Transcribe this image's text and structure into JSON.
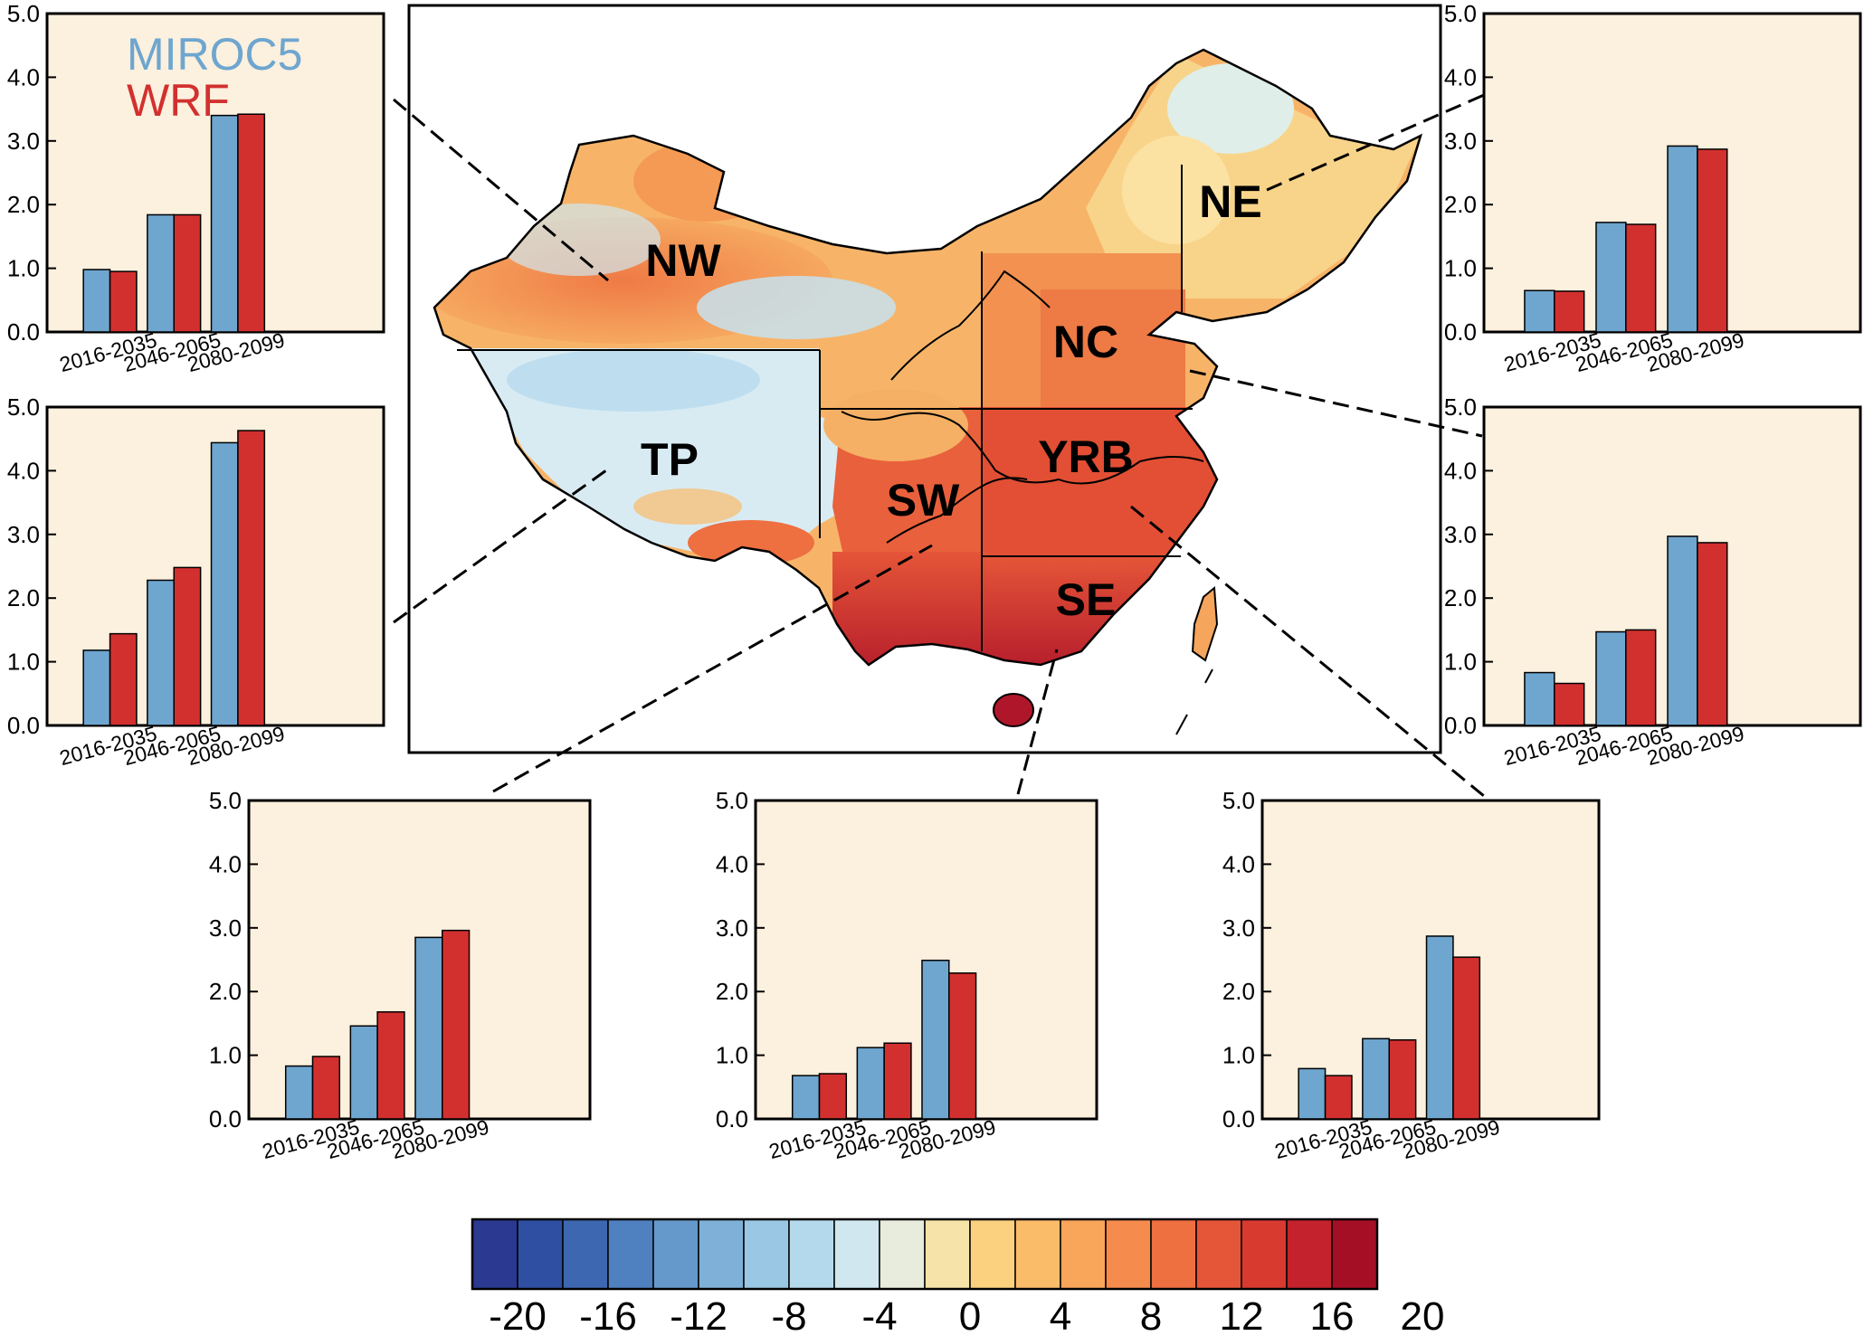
{
  "colors": {
    "miroc": "#6ea6cf",
    "wrf": "#d2302f",
    "panel_bg": "#fcf0de"
  },
  "legend": {
    "miroc": "MIROC5",
    "wrf": "WRF"
  },
  "map": {
    "region_labels": [
      "NW",
      "NE",
      "NC",
      "TP",
      "YRB",
      "SW",
      "SE"
    ]
  },
  "colorbar": {
    "ticks": [
      "-20",
      "-16",
      "-12",
      "-8",
      "-4",
      "0",
      "4",
      "8",
      "12",
      "16",
      "20"
    ],
    "colors": [
      "#2b3990",
      "#2f4fa2",
      "#3d67b0",
      "#4f80bf",
      "#6599cb",
      "#7fb1d8",
      "#9ac7e3",
      "#b5d9ec",
      "#d0e7f0",
      "#e8ecdc",
      "#f5e3a9",
      "#fbd07e",
      "#fbbc6a",
      "#f9a55a",
      "#f58b4d",
      "#ee6f40",
      "#e55538",
      "#d83a30",
      "#c4222c",
      "#a50f26"
    ]
  },
  "chart_data": [
    {
      "type": "bar",
      "region": "NW",
      "categories": [
        "2016-2035",
        "2046-2065",
        "2080-2099"
      ],
      "ylim": [
        0,
        5
      ],
      "yticks": [
        "0.0",
        "1.0",
        "2.0",
        "3.0",
        "4.0",
        "5.0"
      ],
      "series": [
        {
          "name": "MIROC5",
          "values": [
            0.98,
            1.84,
            3.4
          ]
        },
        {
          "name": "WRF",
          "values": [
            0.95,
            1.84,
            3.42
          ]
        }
      ]
    },
    {
      "type": "bar",
      "region": "TP",
      "categories": [
        "2016-2035",
        "2046-2065",
        "2080-2099"
      ],
      "ylim": [
        0,
        5
      ],
      "yticks": [
        "0.0",
        "1.0",
        "2.0",
        "3.0",
        "4.0",
        "5.0"
      ],
      "series": [
        {
          "name": "MIROC5",
          "values": [
            1.18,
            2.28,
            4.44
          ]
        },
        {
          "name": "WRF",
          "values": [
            1.44,
            2.48,
            4.63
          ]
        }
      ]
    },
    {
      "type": "bar",
      "region": "NE",
      "categories": [
        "2016-2035",
        "2046-2065",
        "2080-2099"
      ],
      "ylim": [
        0,
        5
      ],
      "yticks": [
        "0.0",
        "1.0",
        "2.0",
        "3.0",
        "4.0",
        "5.0"
      ],
      "series": [
        {
          "name": "MIROC5",
          "values": [
            0.65,
            1.72,
            2.92
          ]
        },
        {
          "name": "WRF",
          "values": [
            0.64,
            1.69,
            2.87
          ]
        }
      ]
    },
    {
      "type": "bar",
      "region": "NC",
      "categories": [
        "2016-2035",
        "2046-2065",
        "2080-2099"
      ],
      "ylim": [
        0,
        5
      ],
      "yticks": [
        "0.0",
        "1.0",
        "2.0",
        "3.0",
        "4.0",
        "5.0"
      ],
      "series": [
        {
          "name": "MIROC5",
          "values": [
            0.83,
            1.47,
            2.97
          ]
        },
        {
          "name": "WRF",
          "values": [
            0.66,
            1.5,
            2.87
          ]
        }
      ]
    },
    {
      "type": "bar",
      "region": "SW",
      "categories": [
        "2016-2035",
        "2046-2065",
        "2080-2099"
      ],
      "ylim": [
        0,
        5
      ],
      "yticks": [
        "0.0",
        "1.0",
        "2.0",
        "3.0",
        "4.0",
        "5.0"
      ],
      "series": [
        {
          "name": "MIROC5",
          "values": [
            0.83,
            1.46,
            2.85
          ]
        },
        {
          "name": "WRF",
          "values": [
            0.98,
            1.68,
            2.96
          ]
        }
      ]
    },
    {
      "type": "bar",
      "region": "SE",
      "categories": [
        "2016-2035",
        "2046-2065",
        "2080-2099"
      ],
      "ylim": [
        0,
        5
      ],
      "yticks": [
        "0.0",
        "1.0",
        "2.0",
        "3.0",
        "4.0",
        "5.0"
      ],
      "series": [
        {
          "name": "MIROC5",
          "values": [
            0.68,
            1.12,
            2.49
          ]
        },
        {
          "name": "WRF",
          "values": [
            0.71,
            1.19,
            2.29
          ]
        }
      ]
    },
    {
      "type": "bar",
      "region": "YRB",
      "categories": [
        "2016-2035",
        "2046-2065",
        "2080-2099"
      ],
      "ylim": [
        0,
        5
      ],
      "yticks": [
        "0.0",
        "1.0",
        "2.0",
        "3.0",
        "4.0",
        "5.0"
      ],
      "series": [
        {
          "name": "MIROC5",
          "values": [
            0.79,
            1.26,
            2.87
          ]
        },
        {
          "name": "WRF",
          "values": [
            0.68,
            1.24,
            2.54
          ]
        }
      ]
    }
  ]
}
